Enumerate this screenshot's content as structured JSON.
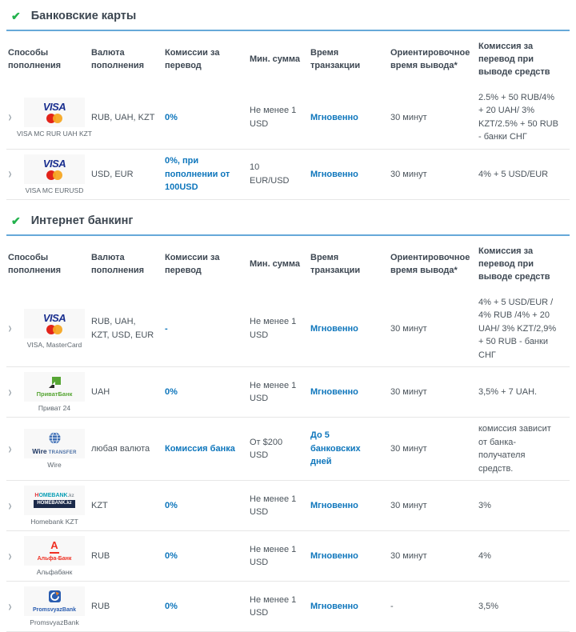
{
  "columns": [
    "Способы пополнения",
    "Валюта пополнения",
    "Комиссии за перевод",
    "Мин. сумма",
    "Время транзакции",
    "Ориентировочное время вывода*",
    "Комиссия за перевод при выводе средств"
  ],
  "icons": {
    "section_check": "✔",
    "row_chevron": "›"
  },
  "colors": {
    "accent_blue": "#0e76bc",
    "check_green": "#22b24c",
    "section_underline": "#66a9d9",
    "header_text": "#3d4752",
    "body_text": "#4b545c",
    "divider": "#e7e7e7"
  },
  "logos": {
    "visa-mastercard": {
      "text": "VISA"
    },
    "privatbank": {
      "text": "ПриватБанк"
    },
    "wire-transfer": {
      "text_bold": "Wire",
      "text_small": "TRANSFER"
    },
    "homebank": {
      "line1_h": "H",
      "line1_rest": "OMEBANK",
      "line1_kz": ".kz",
      "line2": "HOMEBANK.kz"
    },
    "alfabank": {
      "letter": "А",
      "text": "Альфа-Банк"
    },
    "promsvyazbank": {
      "text": "PromsvyazBank"
    }
  },
  "sections": [
    {
      "title": "Банковские карты",
      "rows": [
        {
          "logo": "visa-mastercard",
          "method_label": "VISA MC RUR UAH KZT",
          "currency": "RUB, UAH, KZT",
          "transfer_fee": "0%",
          "min_sum": "Не менее 1 USD",
          "transaction_time": "Мгновенно",
          "withdrawal_time": "30 минут",
          "withdrawal_fee": "2.5% + 50 RUB/4% + 20 UAH/ 3% KZT/2.5% + 50 RUB - банки СНГ"
        },
        {
          "logo": "visa-mastercard",
          "method_label": "VISA MC EURUSD",
          "currency": "USD, EUR",
          "transfer_fee": "0%, при пополнении от 100USD",
          "min_sum": "10 EUR/USD",
          "transaction_time": "Мгновенно",
          "withdrawal_time": "30 минут",
          "withdrawal_fee": "4% + 5 USD/EUR"
        }
      ]
    },
    {
      "title": "Интернет банкинг",
      "rows": [
        {
          "logo": "visa-mastercard",
          "method_label": "VISA, MasterCard",
          "currency": "RUB, UAH, KZT, USD, EUR",
          "transfer_fee": "-",
          "min_sum": "Не менее 1 USD",
          "transaction_time": "Мгновенно",
          "withdrawal_time": "30 минут",
          "withdrawal_fee": "4% + 5 USD/EUR / 4% RUB /4% + 20 UAH/ 3% KZT/2,9% + 50 RUB - банки СНГ"
        },
        {
          "logo": "privatbank",
          "method_label": "Приват 24",
          "currency": "UAH",
          "transfer_fee": "0%",
          "min_sum": "Не менее 1 USD",
          "transaction_time": "Мгновенно",
          "withdrawal_time": "30 минут",
          "withdrawal_fee": "3,5% + 7 UAH."
        },
        {
          "logo": "wire-transfer",
          "method_label": "Wire",
          "currency": "любая валюта",
          "transfer_fee": "Комиссия банка",
          "min_sum": "От $200 USD",
          "transaction_time": "До 5 банковских дней",
          "withdrawal_time": "30 минут",
          "withdrawal_fee": "комиссия зависит от банка-получателя средств."
        },
        {
          "logo": "homebank",
          "method_label": "Homebank KZT",
          "currency": "KZT",
          "transfer_fee": "0%",
          "min_sum": "Не менее 1 USD",
          "transaction_time": "Мгновенно",
          "withdrawal_time": "30 минут",
          "withdrawal_fee": "3%"
        },
        {
          "logo": "alfabank",
          "method_label": "Альфабанк",
          "currency": "RUB",
          "transfer_fee": "0%",
          "min_sum": "Не менее 1 USD",
          "transaction_time": "Мгновенно",
          "withdrawal_time": "30 минут",
          "withdrawal_fee": "4%"
        },
        {
          "logo": "promsvyazbank",
          "method_label": "PromsvyazBank",
          "currency": "RUB",
          "transfer_fee": "0%",
          "min_sum": "Не менее 1 USD",
          "transaction_time": "Мгновенно",
          "withdrawal_time": "-",
          "withdrawal_fee": "3,5%"
        }
      ]
    }
  ]
}
